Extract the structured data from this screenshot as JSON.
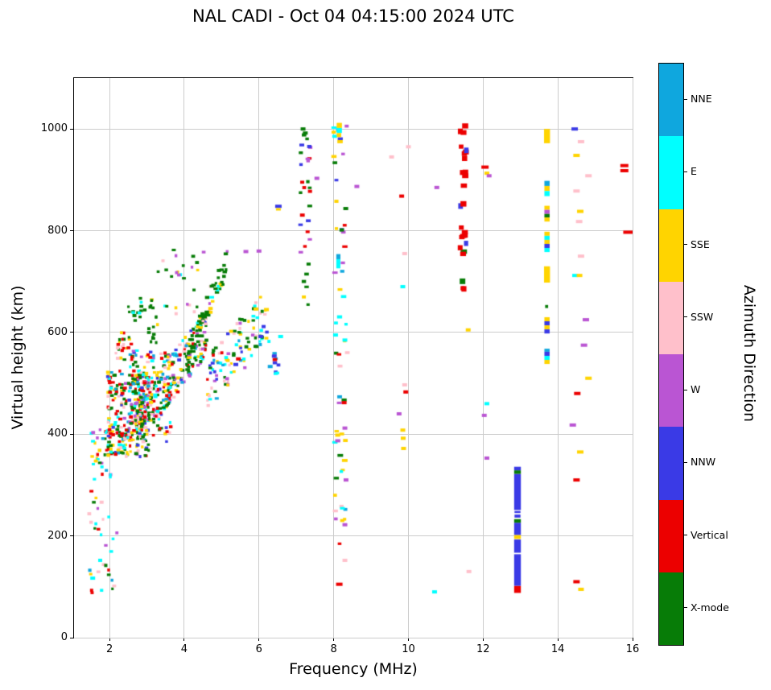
{
  "chart_data": {
    "type": "scatter",
    "title": "NAL CADI - Oct 04 04:15:00 2024 UTC",
    "xlabel": "Frequency (MHz)",
    "ylabel": "Virtual height (km)",
    "xlim": [
      1.05,
      16
    ],
    "ylim": [
      0,
      1100
    ],
    "xticks": [
      2,
      4,
      6,
      8,
      10,
      12,
      14,
      16
    ],
    "yticks": [
      0,
      200,
      400,
      600,
      800,
      1000
    ],
    "grid": true,
    "legend": {
      "title": "Azimuth Direction",
      "position": "right-colorbar",
      "entries": [
        {
          "key": "nne",
          "label": "NNE",
          "color": "#0FA7DE"
        },
        {
          "key": "e",
          "label": "E",
          "color": "#00FFFF"
        },
        {
          "key": "sse",
          "label": "SSE",
          "color": "#FFD400"
        },
        {
          "key": "ssw",
          "label": "SSW",
          "color": "#FFC0CB"
        },
        {
          "key": "w",
          "label": "W",
          "color": "#BA55D3"
        },
        {
          "key": "nnw",
          "label": "NNW",
          "color": "#3A3AE6"
        },
        {
          "key": "vertical",
          "label": "Vertical",
          "color": "#EC0000"
        },
        {
          "key": "xmode",
          "label": "X-mode",
          "color": "#077C07"
        }
      ]
    },
    "palette": {
      "nne": "#0FA7DE",
      "e": "#00FFFF",
      "sse": "#FFD400",
      "ssw": "#FFC0CB",
      "w": "#BA55D3",
      "nnw": "#3A3AE6",
      "vertical": "#EC0000",
      "xmode": "#077C07"
    },
    "seed": 42,
    "clusters": [
      {
        "n": 28,
        "x": [
          1.45,
          2.2
        ],
        "y": [
          85,
          300
        ],
        "colors": {
          "e": 0.3,
          "vertical": 0.14,
          "xmode": 0.16,
          "ssw": 0.12,
          "sse": 0.12,
          "w": 0.08,
          "nne": 0.08
        },
        "size": [
          3,
          5,
          3,
          4
        ]
      },
      {
        "n": 34,
        "x": [
          1.5,
          2.05
        ],
        "y": [
          295,
          425
        ],
        "colors": {
          "e": 0.2,
          "vertical": 0.2,
          "sse": 0.15,
          "xmode": 0.15,
          "ssw": 0.1,
          "nne": 0.1,
          "w": 0.1
        },
        "size": [
          3,
          5,
          3,
          4
        ]
      },
      {
        "n": 270,
        "x": [
          1.95,
          3.05
        ],
        "y": [
          355,
          525
        ],
        "colors": {
          "vertical": 0.22,
          "xmode": 0.17,
          "sse": 0.16,
          "e": 0.12,
          "ssw": 0.12,
          "w": 0.08,
          "nne": 0.06,
          "nnw": 0.07
        },
        "size": [
          3,
          5,
          3,
          4
        ]
      },
      {
        "n": 150,
        "x": [
          2.55,
          3.65
        ],
        "y": [
          380,
          565
        ],
        "colors": {
          "vertical": 0.18,
          "xmode": 0.2,
          "sse": 0.15,
          "e": 0.12,
          "ssw": 0.12,
          "w": 0.1,
          "nne": 0.06,
          "nnw": 0.07
        },
        "size": [
          3,
          5,
          3,
          4
        ]
      },
      {
        "n": 24,
        "x": [
          2.15,
          2.6
        ],
        "y": [
          545,
          600
        ],
        "colors": {
          "vertical": 0.55,
          "ssw": 0.15,
          "sse": 0.12,
          "xmode": 0.18
        },
        "size": [
          3,
          5,
          3,
          4
        ]
      },
      {
        "n": 14,
        "x": [
          2.5,
          2.95
        ],
        "y": [
          615,
          670
        ],
        "colors": {
          "xmode": 0.7,
          "e": 0.15,
          "sse": 0.15
        },
        "size": [
          3,
          5,
          3,
          4
        ]
      },
      {
        "n": 16,
        "x": [
          3.05,
          3.3
        ],
        "y": [
          575,
          670
        ],
        "colors": {
          "xmode": 0.8,
          "sse": 0.2
        },
        "size": [
          3,
          5,
          3,
          4
        ]
      },
      {
        "n": 190,
        "x": [
          2.8,
          4.6
        ],
        "y": [
          430,
          600
        ],
        "diag": true,
        "spread": 45,
        "colors": {
          "xmode": 0.28,
          "sse": 0.15,
          "vertical": 0.12,
          "e": 0.1,
          "ssw": 0.11,
          "w": 0.1,
          "nne": 0.07,
          "nnw": 0.07
        },
        "size": [
          3,
          5,
          3,
          4
        ]
      },
      {
        "n": 70,
        "x": [
          4.1,
          5.15
        ],
        "y": [
          560,
          740
        ],
        "diag": true,
        "spread": 25,
        "colors": {
          "xmode": 0.72,
          "sse": 0.09,
          "e": 0.06,
          "w": 0.06,
          "ssw": 0.07
        },
        "size": [
          3,
          6,
          3,
          4
        ]
      },
      {
        "n": 105,
        "x": [
          4.6,
          6.3
        ],
        "y": [
          500,
          640
        ],
        "diag": true,
        "spread": 55,
        "colors": {
          "xmode": 0.2,
          "sse": 0.18,
          "e": 0.12,
          "ssw": 0.14,
          "w": 0.12,
          "vertical": 0.08,
          "nne": 0.08,
          "nnw": 0.08
        },
        "size": [
          3,
          5,
          3,
          4
        ]
      },
      {
        "n": 26,
        "x": [
          3.3,
          4.6
        ],
        "y": [
          630,
          765
        ],
        "colors": {
          "xmode": 0.5,
          "e": 0.12,
          "sse": 0.14,
          "ssw": 0.12,
          "w": 0.12
        },
        "size": [
          3,
          5,
          3,
          4
        ]
      },
      {
        "n": 10,
        "x": [
          6.38,
          6.62
        ],
        "y": [
          515,
          560
        ],
        "colors": {
          "nnw": 0.4,
          "vertical": 0.25,
          "nne": 0.15,
          "e": 0.2
        },
        "size": [
          4,
          6,
          3,
          4
        ]
      },
      {
        "n": 30,
        "x": [
          7.1,
          7.38
        ],
        "y": [
          650,
          1005
        ],
        "colors": {
          "xmode": 0.45,
          "w": 0.2,
          "nnw": 0.12,
          "vertical": 0.12,
          "sse": 0.11
        },
        "size": [
          4,
          6,
          3,
          4
        ]
      },
      {
        "n": 55,
        "x": [
          8.0,
          8.38
        ],
        "y": [
          95,
          1015
        ],
        "colors": {
          "e": 0.2,
          "sse": 0.2,
          "w": 0.18,
          "nne": 0.12,
          "vertical": 0.1,
          "xmode": 0.08,
          "ssw": 0.07,
          "nnw": 0.05
        },
        "size": [
          4,
          7,
          3,
          4
        ]
      },
      {
        "n": 26,
        "x": [
          11.38,
          11.56
        ],
        "y": [
          655,
          1010
        ],
        "colors": {
          "vertical": 0.78,
          "xmode": 0.08,
          "w": 0.07,
          "nnw": 0.07
        },
        "size": [
          5,
          8,
          5,
          7
        ]
      }
    ],
    "points": [
      [
        1.52,
        93,
        "vertical",
        4,
        4
      ],
      [
        1.55,
        117,
        "e",
        6,
        4
      ],
      [
        1.75,
        152,
        "e",
        5,
        4
      ],
      [
        1.9,
        142,
        "xmode",
        4,
        4
      ],
      [
        5.38,
        537,
        "nnw"
      ],
      [
        5.45,
        548,
        "vertical"
      ],
      [
        5.65,
        759,
        "w"
      ],
      [
        5.92,
        646,
        "sse"
      ],
      [
        6.05,
        592,
        "nnw"
      ],
      [
        6.3,
        533,
        "nne"
      ],
      [
        6.58,
        592,
        "e"
      ],
      [
        6.2,
        645,
        "sse"
      ],
      [
        6.52,
        848,
        "nnw",
        8,
        4
      ],
      [
        6.52,
        842,
        "sse",
        6,
        3
      ],
      [
        6.0,
        760,
        "w"
      ],
      [
        7.18,
        1000,
        "xmode"
      ],
      [
        7.24,
        992,
        "xmode"
      ],
      [
        7.55,
        903,
        "w"
      ],
      [
        8.62,
        887,
        "w"
      ],
      [
        8.15,
        105,
        "vertical",
        8,
        4
      ],
      [
        8.3,
        152,
        "ssw"
      ],
      [
        8.3,
        222,
        "w"
      ],
      [
        8.33,
        310,
        "w"
      ],
      [
        8.3,
        412,
        "w"
      ],
      [
        8.28,
        462,
        "vertical"
      ],
      [
        8.3,
        585,
        "e"
      ],
      [
        8.05,
        595,
        "e"
      ],
      [
        9.55,
        945,
        "ssw"
      ],
      [
        9.85,
        408,
        "sse"
      ],
      [
        9.86,
        392,
        "sse"
      ],
      [
        9.87,
        372,
        "sse"
      ],
      [
        9.9,
        497,
        "ssw"
      ],
      [
        9.93,
        483,
        "vertical"
      ],
      [
        9.85,
        690,
        "e"
      ],
      [
        9.9,
        755,
        "ssw"
      ],
      [
        9.82,
        868,
        "vertical"
      ],
      [
        10.0,
        965,
        "ssw"
      ],
      [
        9.75,
        440,
        "w"
      ],
      [
        10.7,
        90,
        "e"
      ],
      [
        10.76,
        885,
        "w"
      ],
      [
        11.6,
        605,
        "sse"
      ],
      [
        11.62,
        130,
        "ssw"
      ],
      [
        12.05,
        925,
        "vertical",
        9,
        4
      ],
      [
        12.1,
        913,
        "sse"
      ],
      [
        12.16,
        908,
        "w"
      ],
      [
        12.1,
        460,
        "e"
      ],
      [
        12.03,
        437,
        "w"
      ],
      [
        12.1,
        353,
        "w"
      ],
      [
        14.45,
        1000,
        "nnw",
        8,
        4
      ],
      [
        14.62,
        975,
        "ssw",
        8,
        4
      ],
      [
        14.5,
        948,
        "sse",
        8,
        4
      ],
      [
        14.82,
        908,
        "ssw",
        8,
        4
      ],
      [
        14.5,
        878,
        "ssw",
        8,
        4
      ],
      [
        14.6,
        838,
        "sse",
        8,
        4
      ],
      [
        14.57,
        818,
        "ssw",
        8,
        4
      ],
      [
        14.62,
        750,
        "ssw",
        8,
        4
      ],
      [
        14.46,
        712,
        "e",
        7,
        4
      ],
      [
        14.58,
        712,
        "sse",
        7,
        4
      ],
      [
        14.75,
        625,
        "w",
        8,
        4
      ],
      [
        14.7,
        575,
        "w",
        8,
        4
      ],
      [
        14.82,
        510,
        "sse",
        8,
        4
      ],
      [
        14.52,
        480,
        "vertical",
        8,
        4
      ],
      [
        14.4,
        418,
        "w",
        8,
        4
      ],
      [
        14.6,
        365,
        "sse",
        8,
        4
      ],
      [
        14.5,
        310,
        "vertical",
        8,
        4
      ],
      [
        14.5,
        110,
        "vertical",
        8,
        4
      ],
      [
        14.62,
        95,
        "sse",
        7,
        4
      ],
      [
        15.78,
        928,
        "vertical",
        10,
        4
      ],
      [
        15.78,
        918,
        "vertical",
        10,
        4
      ],
      [
        15.88,
        797,
        "vertical",
        12,
        4
      ]
    ],
    "blocks": [
      [
        12.83,
        13.01,
        88,
        102,
        "vertical"
      ],
      [
        12.83,
        13.01,
        102,
        164,
        "nnw"
      ],
      [
        12.83,
        13.01,
        167,
        193,
        "nnw"
      ],
      [
        12.83,
        13.01,
        194,
        202,
        "sse"
      ],
      [
        12.83,
        13.01,
        202,
        226,
        "nnw"
      ],
      [
        12.83,
        13.01,
        226,
        233,
        "xmode"
      ],
      [
        12.84,
        13.0,
        236,
        242,
        "nnw"
      ],
      [
        12.84,
        13.0,
        245,
        249,
        "nnw"
      ],
      [
        12.83,
        13.01,
        251,
        322,
        "nnw"
      ],
      [
        12.83,
        13.01,
        322,
        329,
        "xmode"
      ],
      [
        12.83,
        13.01,
        329,
        336,
        "nnw"
      ],
      [
        13.63,
        13.79,
        972,
        1000,
        "sse"
      ],
      [
        13.64,
        13.78,
        888,
        898,
        "nne"
      ],
      [
        13.64,
        13.78,
        878,
        888,
        "sse"
      ],
      [
        13.64,
        13.78,
        868,
        878,
        "e"
      ],
      [
        13.64,
        13.78,
        841,
        849,
        "sse"
      ],
      [
        13.64,
        13.78,
        833,
        841,
        "w"
      ],
      [
        13.64,
        13.78,
        826,
        833,
        "xmode"
      ],
      [
        13.64,
        13.78,
        818,
        826,
        "sse"
      ],
      [
        13.64,
        13.78,
        790,
        798,
        "sse"
      ],
      [
        13.64,
        13.78,
        782,
        790,
        "e"
      ],
      [
        13.64,
        13.78,
        774,
        782,
        "sse"
      ],
      [
        13.64,
        13.78,
        766,
        774,
        "nnw"
      ],
      [
        13.64,
        13.78,
        758,
        766,
        "e"
      ],
      [
        13.63,
        13.79,
        698,
        730,
        "sse"
      ],
      [
        13.66,
        13.74,
        648,
        654,
        "xmode"
      ],
      [
        13.64,
        13.78,
        622,
        630,
        "sse"
      ],
      [
        13.64,
        13.78,
        614,
        622,
        "nnw"
      ],
      [
        13.64,
        13.78,
        606,
        614,
        "sse"
      ],
      [
        13.64,
        13.78,
        598,
        606,
        "nnw"
      ],
      [
        13.64,
        13.78,
        562,
        568,
        "nne"
      ],
      [
        13.64,
        13.78,
        554,
        562,
        "nnw"
      ],
      [
        13.64,
        13.78,
        546,
        554,
        "e"
      ],
      [
        13.64,
        13.78,
        538,
        546,
        "sse"
      ],
      [
        8.08,
        8.22,
        1002,
        1012,
        "sse"
      ],
      [
        8.08,
        8.22,
        992,
        1002,
        "e"
      ],
      [
        8.08,
        8.2,
        984,
        992,
        "sse"
      ],
      [
        8.07,
        8.18,
        726,
        744,
        "e"
      ],
      [
        8.07,
        8.18,
        744,
        754,
        "nne"
      ]
    ]
  }
}
